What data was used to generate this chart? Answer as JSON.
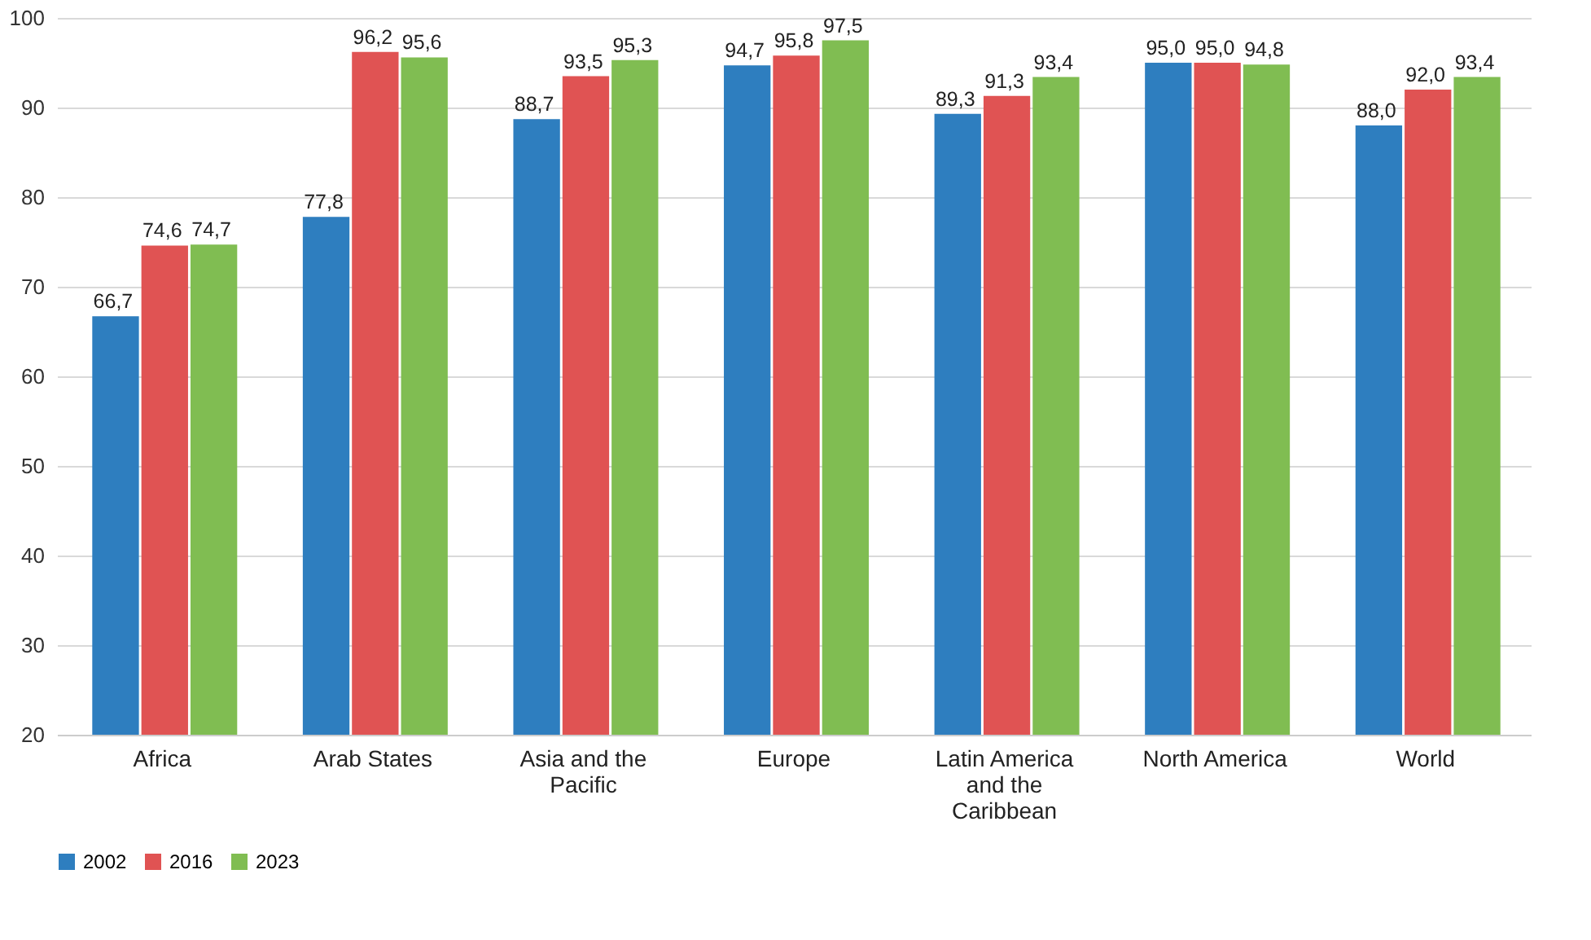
{
  "chart_data": {
    "type": "bar",
    "categories": [
      "Africa",
      "Arab States",
      "Asia and the Pacific",
      "Europe",
      "Latin America and the Caribbean",
      "North America",
      "World"
    ],
    "series": [
      {
        "name": "2002",
        "color": "#2e7ebf",
        "values": [
          66.7,
          77.8,
          88.7,
          94.7,
          89.3,
          95.0,
          88.0
        ],
        "value_labels": [
          "66,7",
          "77,8",
          "88,7",
          "94,7",
          "89,3",
          "95,0",
          "88,0"
        ]
      },
      {
        "name": "2016",
        "color": "#e05353",
        "values": [
          74.6,
          96.2,
          93.5,
          95.8,
          91.3,
          95.0,
          92.0
        ],
        "value_labels": [
          "74,6",
          "96,2",
          "93,5",
          "95,8",
          "91,3",
          "95,0",
          "92,0"
        ]
      },
      {
        "name": "2023",
        "color": "#80bd52",
        "values": [
          74.7,
          95.6,
          95.3,
          97.5,
          93.4,
          94.8,
          93.4
        ],
        "value_labels": [
          "74,7",
          "95,6",
          "95,3",
          "97,5",
          "93,4",
          "94,8",
          "93,4"
        ]
      }
    ],
    "ylim": [
      20,
      100
    ],
    "yticks": [
      20,
      30,
      40,
      50,
      60,
      70,
      80,
      90,
      100
    ],
    "grid": "y",
    "legend": "bottom"
  }
}
